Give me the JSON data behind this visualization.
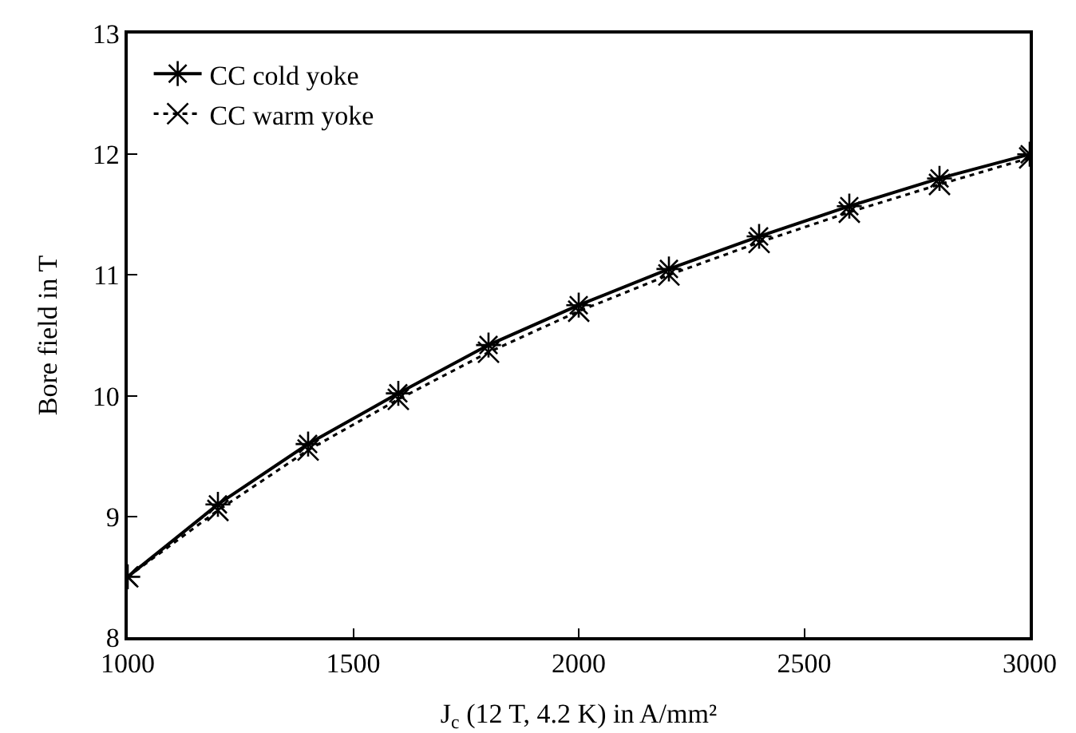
{
  "chart_data": {
    "type": "line",
    "xlabel": "J$_{c}$ (12 T, 4.2 K) in A/mm²",
    "ylabel": "Bore field in T",
    "x": [
      1000,
      1200,
      1400,
      1600,
      1800,
      2000,
      2200,
      2400,
      2600,
      2800,
      3000
    ],
    "series": [
      {
        "name": "CC cold yoke",
        "color": "#000000",
        "marker": "cross",
        "line_style": "solid",
        "values": [
          8.5,
          9.1,
          9.6,
          10.02,
          10.42,
          10.75,
          11.05,
          11.32,
          11.57,
          11.8,
          12.0
        ]
      },
      {
        "name": "CC warm yoke",
        "color": "#000000",
        "marker": "cross",
        "line_style": "dotted",
        "values": [
          8.5,
          9.05,
          9.55,
          9.97,
          10.36,
          10.7,
          11.0,
          11.27,
          11.52,
          11.75,
          11.97
        ]
      }
    ],
    "xlim": [
      1000,
      3000
    ],
    "xticks": [
      1000,
      1500,
      2000,
      2500,
      3000
    ],
    "ylim": [
      8,
      13
    ],
    "yticks": [
      8,
      9,
      10,
      11,
      12,
      13
    ],
    "grid": false,
    "legend": "top left"
  }
}
